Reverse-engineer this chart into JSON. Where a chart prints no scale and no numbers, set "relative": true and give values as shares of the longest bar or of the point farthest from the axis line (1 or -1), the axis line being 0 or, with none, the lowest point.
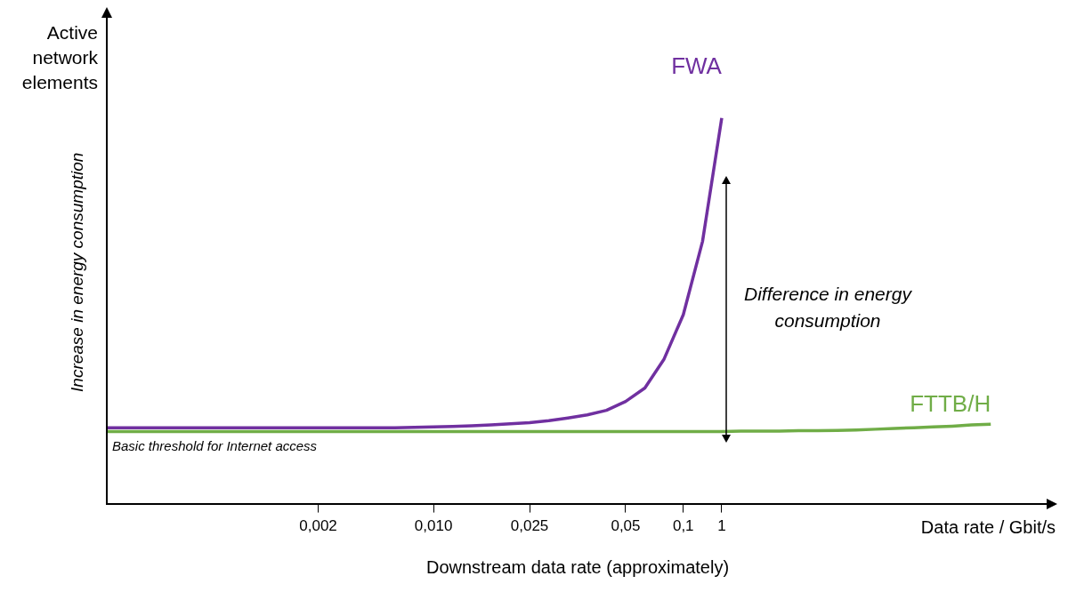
{
  "chart_data": {
    "type": "line",
    "relative": true,
    "xlabel": "Downstream data rate (approximately)",
    "ylabel": "Increase in energy consumption",
    "categories": [
      null,
      null,
      null,
      null,
      null,
      null,
      null,
      null,
      null,
      null,
      null,
      "0,002",
      null,
      null,
      null,
      null,
      null,
      "0,010",
      null,
      null,
      null,
      null,
      "0,025",
      null,
      null,
      null,
      null,
      "0,05",
      null,
      null,
      "0,1",
      null,
      "1",
      null,
      null,
      null,
      null,
      null,
      null,
      null,
      null,
      null,
      null,
      null,
      null,
      null,
      null,
      null,
      null,
      null
    ],
    "series": [
      {
        "name": "FWA",
        "color": "#7030a0",
        "values": [
          0.197,
          0.197,
          0.197,
          0.197,
          0.197,
          0.197,
          0.197,
          0.197,
          0.197,
          0.197,
          0.197,
          0.197,
          0.197,
          0.197,
          0.197,
          0.197,
          0.198,
          0.199,
          0.2,
          0.202,
          0.204,
          0.207,
          0.21,
          0.215,
          0.222,
          0.23,
          0.242,
          0.265,
          0.3,
          0.375,
          0.49,
          0.68,
          1,
          null,
          null,
          null,
          null,
          null,
          null,
          null,
          null,
          null,
          null,
          null,
          null,
          null,
          null,
          null,
          null,
          null
        ]
      },
      {
        "name": "FTTB/H",
        "color": "#70ad47",
        "values": [
          0.187,
          0.187,
          0.187,
          0.187,
          0.187,
          0.187,
          0.187,
          0.187,
          0.187,
          0.187,
          0.187,
          0.187,
          0.187,
          0.187,
          0.187,
          0.187,
          0.187,
          0.187,
          0.187,
          0.187,
          0.187,
          0.187,
          0.187,
          0.187,
          0.187,
          0.187,
          0.187,
          0.187,
          0.187,
          0.187,
          0.187,
          0.187,
          0.187,
          0.188,
          0.188,
          0.188,
          0.189,
          0.189,
          0.19,
          0.191,
          0.193,
          0.195,
          0.197,
          0.199,
          0.201,
          0.204,
          0.206,
          null,
          null,
          null
        ]
      }
    ],
    "annotations": [
      "Active network elements",
      "Difference in energy consumption",
      "Basic threshold for Internet access",
      "Data rate / Gbit/s"
    ]
  }
}
